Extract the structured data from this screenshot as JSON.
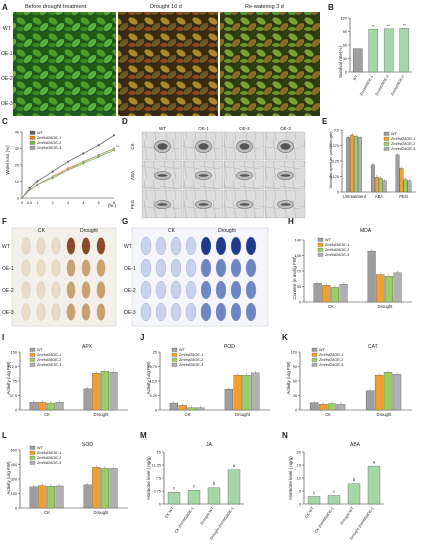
{
  "panels": {
    "A": {
      "letter": "A",
      "captions": [
        "Before  drought treatment",
        "Drought 10 d",
        "Re-watering 3 d"
      ],
      "rows": [
        "WT",
        "OE-1",
        "OE-2",
        "OE-3"
      ]
    },
    "B": {
      "letter": "B",
      "ylabel": "Survival rate(%)",
      "categories": [
        "WT",
        "ZmHsf28OE-1",
        "ZmHsf28OE-2",
        "ZmHsf28OE-3"
      ],
      "sig": [
        "**",
        "**",
        "**"
      ]
    },
    "C": {
      "letter": "C",
      "ylabel": "Water loss (%)",
      "xunit": "(hr.)",
      "legend": [
        "WT",
        "ZmHsf28OE-1",
        "ZmHsf28OE-2",
        "ZmHsf28OE-3"
      ],
      "sig": "**"
    },
    "D": {
      "letter": "D",
      "cols": [
        "WT",
        "OE-1",
        "OE-2",
        "OE-3"
      ],
      "rows": [
        "CK",
        "ABA",
        "PEG"
      ]
    },
    "E": {
      "letter": "E",
      "ylabel": "Stomatal aperture (width/length)",
      "legend": [
        "WT",
        "ZmHsf28OE-1",
        "ZmHsf28OE-2",
        "ZmHsf28OE-3"
      ],
      "groups": [
        "Untreatment",
        "ABA",
        "PEG"
      ]
    },
    "F": {
      "letter": "F",
      "cols": [
        "CK",
        "Drought"
      ],
      "rows": [
        "WT",
        "OE-1",
        "OE-2",
        "OE-3"
      ]
    },
    "G": {
      "letter": "G",
      "cols": [
        "CK",
        "Drought"
      ],
      "rows": [
        "WT",
        "OE-1",
        "OE-2",
        "OE-3"
      ]
    },
    "H": {
      "letter": "H",
      "title": "MDA",
      "ylabel": "Content (n mol/g FW)",
      "legend": [
        "WT",
        "ZmHsf28OE-1",
        "ZmHsf28OE-2",
        "ZmHsf28OE-3"
      ],
      "groups": [
        "CK",
        "Drought"
      ]
    },
    "I": {
      "letter": "I",
      "title": "APX",
      "ylabel": "Activity (u/g FW)",
      "legend": [
        "WT",
        "ZmHsf28OE-1",
        "ZmHsf28OE-2",
        "ZmHsf28OE-3"
      ],
      "groups": [
        "CK",
        "Drought"
      ]
    },
    "J": {
      "letter": "J",
      "title": "POD",
      "ylabel": "Activity (u/g FW)",
      "legend": [
        "WT",
        "ZmHsf28OE-1",
        "ZmHsf28OE-2",
        "ZmHsf28OE-3"
      ],
      "groups": [
        "CK",
        "Drought"
      ]
    },
    "K": {
      "letter": "K",
      "title": "CAT",
      "ylabel": "Activity (u/g FW)",
      "legend": [
        "WT",
        "ZmHsf28OE-1",
        "ZmHsf28OE-2",
        "ZmHsf28OE-3"
      ],
      "groups": [
        "CK",
        "Drought"
      ]
    },
    "L": {
      "letter": "L",
      "title": "SOD",
      "ylabel": "Activity (u/g FW)",
      "legend": [
        "WT",
        "ZmHsf28OE-1",
        "ZmHsf28OE-2",
        "ZmHsf28OE-3"
      ],
      "groups": [
        "CK",
        "Drought"
      ]
    },
    "M": {
      "letter": "M",
      "title": "JA",
      "ylabel": "Hormone level ( ng/g)",
      "categories": [
        "CK-WT",
        "CK-ZmHsf28OE-1",
        "Drought-WT",
        "Drought-ZmHsf28OE-1"
      ],
      "letters": [
        "c",
        "c",
        "b",
        "a"
      ]
    },
    "N": {
      "letter": "N",
      "title": "ABA",
      "ylabel": "Hormone level ( ng/g)",
      "categories": [
        "CK-WT",
        "CK-ZmHsf28OE-1",
        "Drought-WT",
        "Drought-ZmHsf28OE-1"
      ],
      "letters": [
        "c",
        "c",
        "b",
        "a"
      ]
    }
  },
  "colors": {
    "wt": "#9e9e9e",
    "oe1": "#f0a030",
    "oe2": "#9ccc65",
    "oe3": "#b0b0b0",
    "line_wt": "#606060",
    "line_oe1": "#e08a1e",
    "line_oe2": "#7cb342",
    "line_oe3": "#9e9e9e"
  },
  "chart_data": [
    {
      "panel": "B",
      "type": "bar",
      "categories": [
        "WT",
        "ZmHsf28OE-1",
        "ZmHsf28OE-2",
        "ZmHsf28OE-3"
      ],
      "values": [
        52,
        95,
        96,
        97
      ],
      "ylim": [
        0,
        120
      ]
    },
    {
      "panel": "C",
      "type": "line",
      "x": [
        0,
        0.5,
        1,
        2,
        3,
        4,
        5,
        6
      ],
      "series": [
        {
          "name": "WT",
          "values": [
            0,
            6,
            10,
            16,
            22,
            27,
            32,
            38
          ]
        },
        {
          "name": "ZmHsf28OE-1",
          "values": [
            0,
            5,
            8,
            13,
            18,
            22,
            26,
            30
          ]
        },
        {
          "name": "ZmHsf28OE-2",
          "values": [
            0,
            5,
            8,
            12,
            17,
            21,
            25,
            29
          ]
        },
        {
          "name": "ZmHsf28OE-3",
          "values": [
            0,
            5,
            8,
            13,
            17,
            22,
            26,
            30
          ]
        }
      ],
      "ylim": [
        0,
        40
      ]
    },
    {
      "panel": "E",
      "type": "bar",
      "categories": [
        "Untreatment",
        "ABA",
        "PEG"
      ],
      "series": [
        {
          "name": "WT",
          "values": [
            0.44,
            0.22,
            0.3
          ]
        },
        {
          "name": "ZmHsf28OE-1",
          "values": [
            0.46,
            0.12,
            0.19
          ]
        },
        {
          "name": "ZmHsf28OE-2",
          "values": [
            0.45,
            0.11,
            0.1
          ]
        },
        {
          "name": "ZmHsf28OE-3",
          "values": [
            0.44,
            0.09,
            0.09
          ]
        }
      ],
      "ylim": [
        0,
        0.5
      ]
    },
    {
      "panel": "H",
      "type": "bar",
      "categories": [
        "CK",
        "Drought"
      ],
      "series": [
        {
          "name": "WT",
          "values": [
            42,
            115
          ]
        },
        {
          "name": "ZmHsf28OE-1",
          "values": [
            38,
            62
          ]
        },
        {
          "name": "ZmHsf28OE-2",
          "values": [
            33,
            58
          ]
        },
        {
          "name": "ZmHsf28OE-3",
          "values": [
            40,
            66
          ]
        }
      ],
      "ylim": [
        0,
        140
      ]
    },
    {
      "panel": "I",
      "type": "bar",
      "categories": [
        "CK",
        "Drought"
      ],
      "series": [
        {
          "name": "WT",
          "values": [
            20,
            55
          ]
        },
        {
          "name": "ZmHsf28OE-1",
          "values": [
            20,
            95
          ]
        },
        {
          "name": "ZmHsf28OE-2",
          "values": [
            18,
            100
          ]
        },
        {
          "name": "ZmHsf28OE-3",
          "values": [
            20,
            98
          ]
        }
      ],
      "ylim": [
        0,
        150
      ]
    },
    {
      "panel": "J",
      "type": "bar",
      "categories": [
        "CK",
        "Drought"
      ],
      "series": [
        {
          "name": "WT",
          "values": [
            3,
            9
          ]
        },
        {
          "name": "ZmHsf28OE-1",
          "values": [
            2,
            15
          ]
        },
        {
          "name": "ZmHsf28OE-2",
          "values": [
            1,
            15
          ]
        },
        {
          "name": "ZmHsf28OE-3",
          "values": [
            1,
            16
          ]
        }
      ],
      "ylim": [
        0,
        25
      ]
    },
    {
      "panel": "K",
      "type": "bar",
      "categories": [
        "CK",
        "Drought"
      ],
      "series": [
        {
          "name": "WT",
          "values": [
            15,
            40
          ]
        },
        {
          "name": "ZmHsf28OE-1",
          "values": [
            12,
            72
          ]
        },
        {
          "name": "ZmHsf28OE-2",
          "values": [
            13,
            78
          ]
        },
        {
          "name": "ZmHsf28OE-3",
          "values": [
            12,
            74
          ]
        }
      ],
      "ylim": [
        0,
        120
      ]
    },
    {
      "panel": "L",
      "type": "bar",
      "categories": [
        "CK",
        "Drought"
      ],
      "series": [
        {
          "name": "WT",
          "values": [
            220,
            240
          ]
        },
        {
          "name": "ZmHsf28OE-1",
          "values": [
            230,
            420
          ]
        },
        {
          "name": "ZmHsf28OE-2",
          "values": [
            225,
            410
          ]
        },
        {
          "name": "ZmHsf28OE-3",
          "values": [
            228,
            410
          ]
        }
      ],
      "ylim": [
        0,
        600
      ]
    },
    {
      "panel": "M",
      "type": "bar",
      "categories": [
        "CK-WT",
        "CK-ZmHsf28OE-1",
        "Drought-WT",
        "Drought-ZmHsf28OE-1"
      ],
      "values": [
        3.4,
        4.0,
        4.7,
        9.9
      ],
      "ylim": [
        0,
        15
      ]
    },
    {
      "panel": "N",
      "type": "bar",
      "categories": [
        "CK-WT",
        "CK-ZmHsf28OE-1",
        "Drought-WT",
        "Drought-ZmHsf28OE-1"
      ],
      "values": [
        2.9,
        3.3,
        7.8,
        14.6
      ],
      "ylim": [
        0,
        20
      ]
    }
  ]
}
